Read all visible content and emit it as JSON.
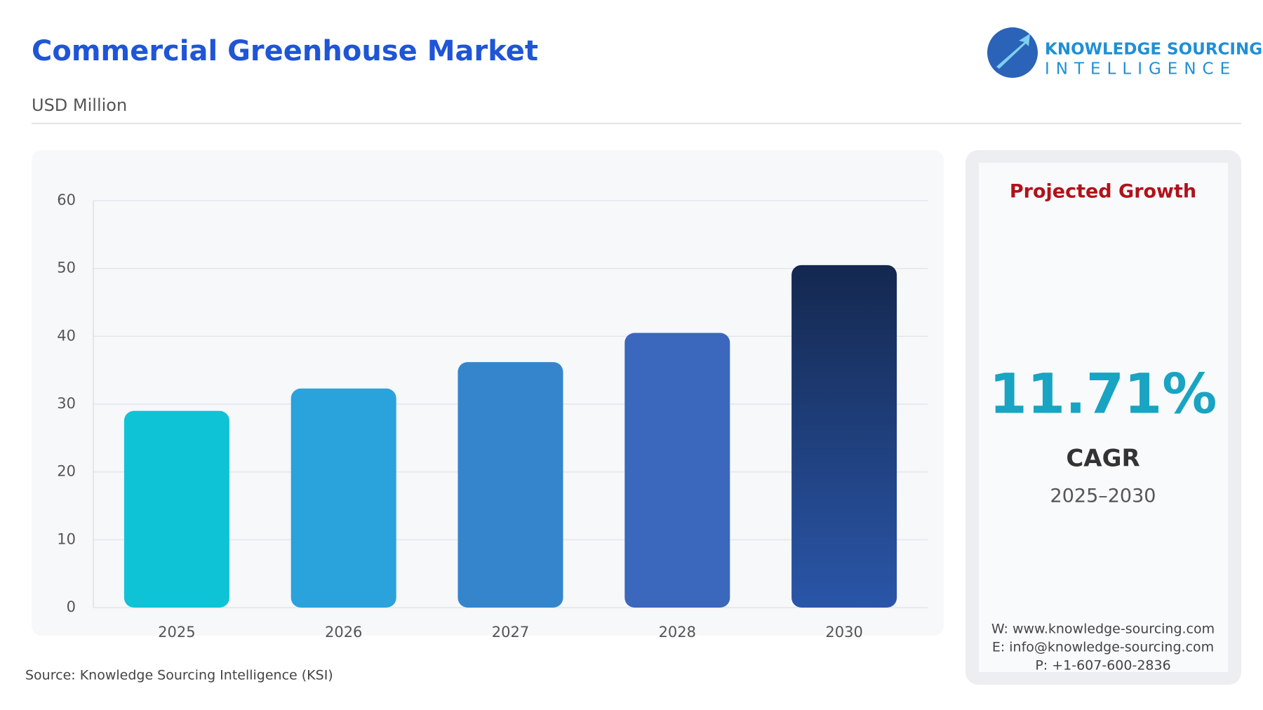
{
  "chart_data": {
    "type": "bar",
    "title": "Commercial Greenhouse Market",
    "subtitle": "USD Million",
    "categories": [
      "2025",
      "2026",
      "2027",
      "2028",
      "2030"
    ],
    "values": [
      29.0,
      32.3,
      36.2,
      40.5,
      50.5
    ],
    "colors": [
      "#0fc3d6",
      "#2aa2dc",
      "#3585cd",
      "#3b67bd",
      "#1c3b72"
    ],
    "ylim": [
      0,
      60
    ],
    "yticks": [
      0,
      10,
      20,
      30,
      40,
      50,
      60
    ],
    "grid": true,
    "source": "Source: Knowledge Sourcing Intelligence (KSI)"
  },
  "logo": {
    "line1": "KNOWLEDGE SOURCING",
    "line2": "INTELLIGENCE"
  },
  "panel": {
    "heading": "Projected Growth",
    "value": "11.71%",
    "label": "CAGR",
    "period": "2025–2030",
    "contacts": [
      "W: www.knowledge-sourcing.com",
      "E: info@knowledge-sourcing.com",
      "P: +1-607-600-2836"
    ]
  }
}
